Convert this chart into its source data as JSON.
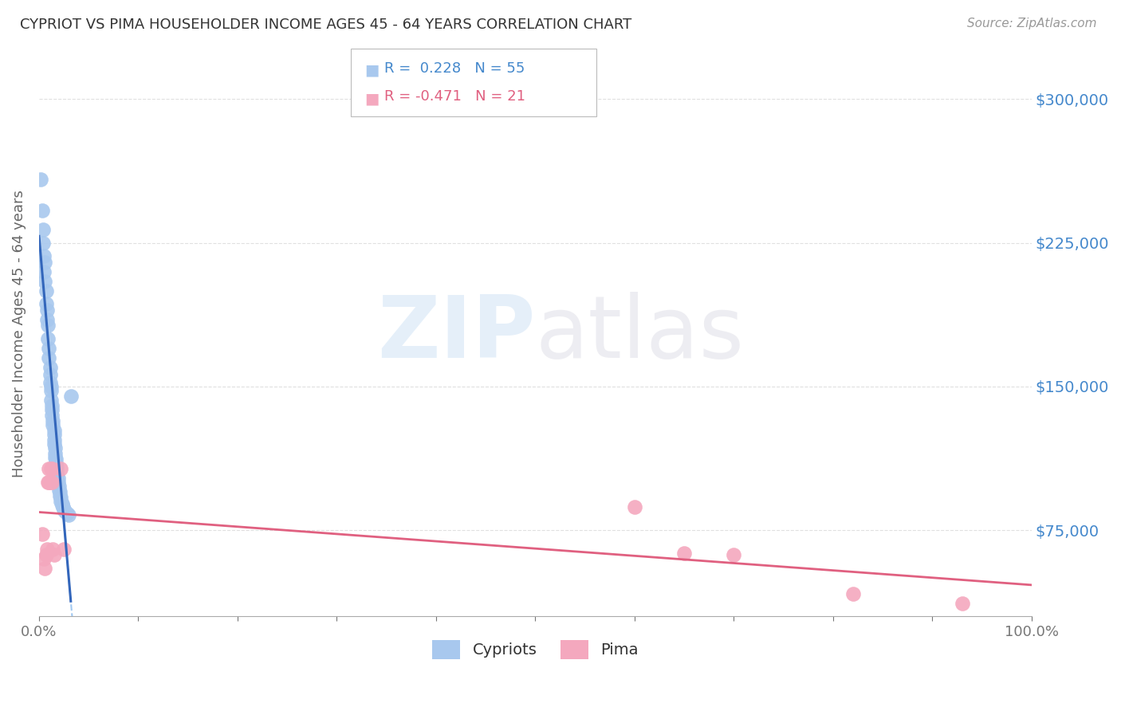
{
  "title": "CYPRIOT VS PIMA HOUSEHOLDER INCOME AGES 45 - 64 YEARS CORRELATION CHART",
  "source": "Source: ZipAtlas.com",
  "ylabel": "Householder Income Ages 45 - 64 years",
  "ytick_labels": [
    "$75,000",
    "$150,000",
    "$225,000",
    "$300,000"
  ],
  "ytick_values": [
    75000,
    150000,
    225000,
    300000
  ],
  "ylim": [
    30000,
    325000
  ],
  "xlim": [
    0.0,
    1.0
  ],
  "cypriot_color": "#A8C8EE",
  "pima_color": "#F4A8BE",
  "cypriot_line_color": "#3366BB",
  "pima_line_color": "#E06080",
  "cypriot_dash_color": "#88BBEE",
  "cypriot_x": [
    0.002,
    0.003,
    0.004,
    0.004,
    0.005,
    0.005,
    0.006,
    0.006,
    0.007,
    0.007,
    0.008,
    0.008,
    0.009,
    0.009,
    0.01,
    0.01,
    0.011,
    0.011,
    0.011,
    0.012,
    0.012,
    0.012,
    0.013,
    0.013,
    0.013,
    0.014,
    0.014,
    0.015,
    0.015,
    0.015,
    0.015,
    0.016,
    0.016,
    0.016,
    0.017,
    0.017,
    0.018,
    0.018,
    0.018,
    0.019,
    0.019,
    0.02,
    0.02,
    0.021,
    0.021,
    0.022,
    0.022,
    0.023,
    0.023,
    0.024,
    0.025,
    0.026,
    0.028,
    0.03,
    0.032
  ],
  "cypriot_y": [
    258000,
    242000,
    232000,
    225000,
    218000,
    210000,
    205000,
    215000,
    200000,
    193000,
    190000,
    185000,
    182000,
    175000,
    170000,
    165000,
    160000,
    156000,
    152000,
    150000,
    148000,
    143000,
    140000,
    138000,
    135000,
    132000,
    130000,
    127000,
    125000,
    122000,
    120000,
    118000,
    115000,
    113000,
    112000,
    110000,
    108000,
    106000,
    104000,
    102000,
    100000,
    98000,
    96000,
    95000,
    93000,
    92000,
    90000,
    89000,
    88000,
    87000,
    86000,
    85000,
    84000,
    83000,
    145000
  ],
  "pima_x": [
    0.003,
    0.005,
    0.006,
    0.007,
    0.008,
    0.009,
    0.01,
    0.01,
    0.011,
    0.012,
    0.013,
    0.013,
    0.014,
    0.015,
    0.022,
    0.025,
    0.6,
    0.65,
    0.7,
    0.82,
    0.93
  ],
  "pima_y": [
    73000,
    60000,
    55000,
    62000,
    65000,
    100000,
    100000,
    107000,
    100000,
    107000,
    100000,
    107000,
    65000,
    62000,
    107000,
    65000,
    87000,
    63000,
    62000,
    42000,
    37000
  ],
  "background_color": "#FFFFFF",
  "grid_color": "#CCCCCC",
  "title_color": "#333333",
  "ylabel_color": "#666666",
  "ytick_color": "#4488CC",
  "legend_text_cypriot": "R =  0.228   N = 55",
  "legend_text_pima": "R = -0.471   N = 21",
  "legend_color_cypriot": "#4488CC",
  "legend_color_pima": "#E06080"
}
